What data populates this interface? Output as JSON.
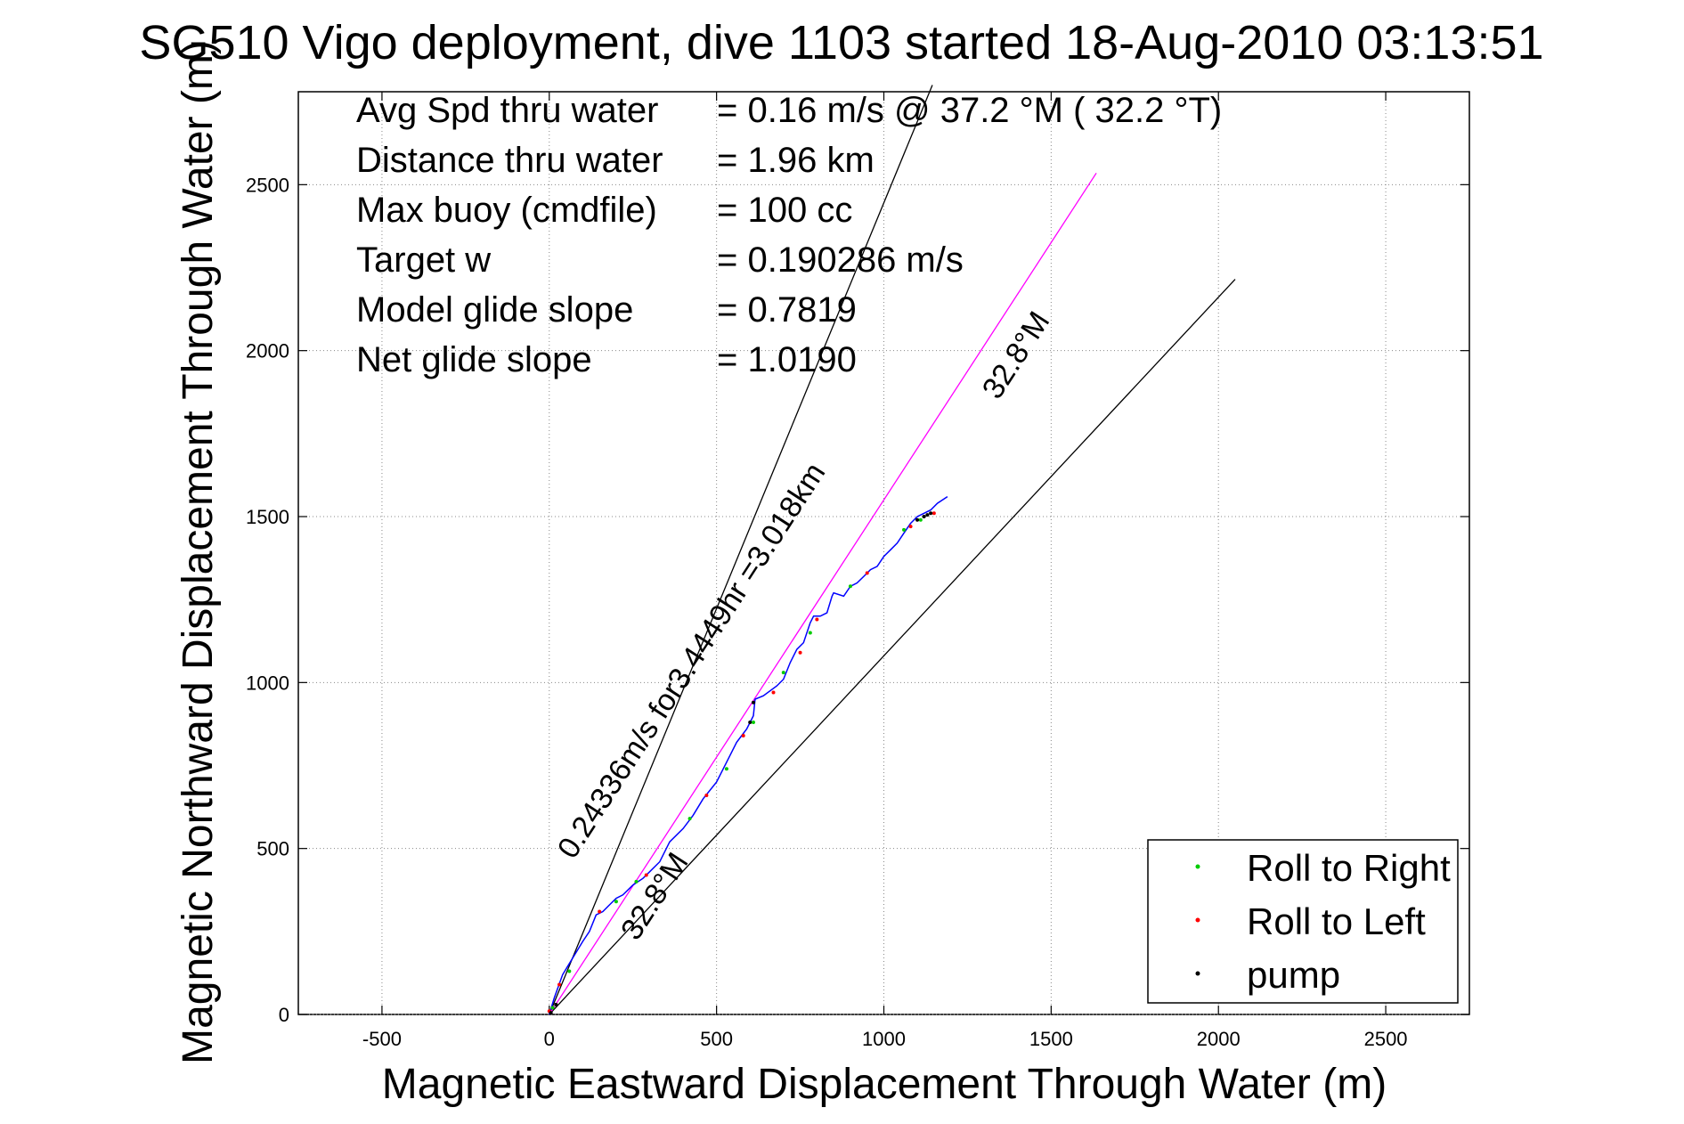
{
  "chart_data": {
    "type": "line",
    "title": "SG510 Vigo deployment, dive 1103 started 18-Aug-2010 03:13:51",
    "xlabel": "Magnetic Eastward Displacement Through Water (m)",
    "ylabel": "Magnetic Northward Displacement Through Water (m)",
    "xlim": [
      -750,
      2750
    ],
    "ylim": [
      0,
      2780
    ],
    "x_ticks": [
      -500,
      0,
      500,
      1000,
      1500,
      2000,
      2500
    ],
    "y_ticks": [
      0,
      500,
      1000,
      1500,
      2000,
      2500
    ],
    "grid": true,
    "legend_position": "bottom-right",
    "stats": [
      {
        "label": "Avg Spd thru water",
        "value": "=  0.16 m/s @  37.2 °M ( 32.2 °T)"
      },
      {
        "label": "Distance thru water",
        "value": "=  1.96 km"
      },
      {
        "label": "Max buoy (cmdfile)",
        "value": "= 100 cc"
      },
      {
        "label": "Target w",
        "value": "= 0.190286 m/s"
      },
      {
        "label": "Model glide slope",
        "value": "= 0.7819"
      },
      {
        "label": "Net glide slope",
        "value": "= 1.0190"
      }
    ],
    "reference_lines": [
      {
        "x": [
          0,
          1145
        ],
        "y": [
          0,
          2800
        ],
        "color": "#000000"
      },
      {
        "x": [
          0,
          2050
        ],
        "y": [
          0,
          2215
        ],
        "color": "#000000"
      },
      {
        "x": [
          0,
          1635
        ],
        "y": [
          0,
          2535
        ],
        "color": "#ff00ff"
      }
    ],
    "annotations": [
      {
        "text": "32.8°M",
        "x": 1420,
        "y": 1970,
        "angle": 57
      },
      {
        "text": "32.8°M",
        "x": 340,
        "y": 340,
        "angle": 57
      },
      {
        "text": "0.24336m/s for3.4449hr =3.018km",
        "x": 450,
        "y": 1050,
        "angle": 57
      }
    ],
    "series": [
      {
        "color": "#0000ff",
        "x": [
          0,
          15,
          40,
          70,
          100,
          120,
          140,
          160,
          180,
          200,
          220,
          250,
          280,
          300,
          330,
          360,
          400,
          430,
          460,
          500,
          530,
          560,
          590,
          610,
          615,
          640,
          680,
          700,
          720,
          740,
          760,
          780,
          790,
          810,
          830,
          845,
          850,
          880,
          900,
          920,
          940,
          960,
          980,
          1000,
          1020,
          1040,
          1060,
          1080,
          1100,
          1120,
          1140,
          1160,
          1190
        ],
        "y": [
          0,
          50,
          120,
          170,
          220,
          250,
          300,
          310,
          330,
          350,
          360,
          390,
          410,
          430,
          460,
          520,
          560,
          600,
          650,
          700,
          760,
          820,
          860,
          900,
          950,
          960,
          990,
          1010,
          1060,
          1100,
          1120,
          1180,
          1200,
          1200,
          1210,
          1260,
          1270,
          1260,
          1290,
          1300,
          1320,
          1340,
          1350,
          1380,
          1400,
          1420,
          1450,
          1480,
          1500,
          1510,
          1520,
          1540,
          1560
        ]
      }
    ],
    "markers": [
      {
        "name": "Roll to Right",
        "color": "#00cc00",
        "x": [
          10,
          60,
          200,
          260,
          420,
          530,
          610,
          700,
          780,
          900,
          1060,
          1110
        ],
        "y": [
          20,
          130,
          340,
          400,
          590,
          740,
          880,
          1030,
          1150,
          1290,
          1460,
          1490
        ]
      },
      {
        "name": "Roll to Left",
        "color": "#ff0000",
        "x": [
          0,
          30,
          150,
          290,
          470,
          580,
          670,
          750,
          800,
          950,
          1080,
          1150
        ],
        "y": [
          10,
          90,
          310,
          420,
          660,
          840,
          970,
          1090,
          1190,
          1330,
          1470,
          1510
        ]
      },
      {
        "name": "pump",
        "color": "#000000",
        "x": [
          5,
          20,
          1100,
          1120,
          1130,
          1140,
          610,
          600
        ],
        "y": [
          5,
          30,
          1490,
          1500,
          1505,
          1510,
          940,
          880
        ]
      }
    ]
  }
}
